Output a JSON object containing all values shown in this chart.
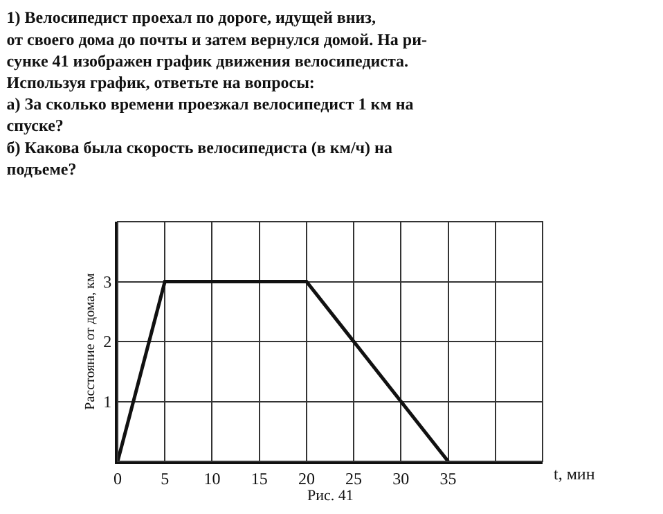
{
  "chart_data": {
    "type": "line",
    "title": "1) Велосипедист проехал по дороге, идущей вниз,\nот своего дома до почты и затем вернулся домой. На ри-\nсунке 41 изображен график движения велосипедиста.\nИспользуя график, ответьте на вопросы:\nа) За сколько времени проезжал велосипедист 1 км на\nспуске?\nб) Какова была скорость велосипедиста (в км/ч) на\nподъеме?",
    "xlabel": "t, мин",
    "ylabel": "Расстояние от дома, км",
    "annotations": [
      "Рис. 41"
    ],
    "x": [
      0,
      5,
      20,
      35
    ],
    "series": [
      {
        "color": "#111111",
        "values": [
          0,
          3,
          3,
          0
        ]
      }
    ],
    "xlim": [
      0,
      45
    ],
    "ylim": [
      0,
      4
    ],
    "xticks": [
      0,
      5,
      10,
      15,
      20,
      25,
      30,
      35,
      {
        "value": 40,
        "label": null
      },
      {
        "value": 45,
        "label": null
      }
    ],
    "yticks": [
      {
        "value": 0,
        "label": null
      },
      1,
      2,
      3,
      {
        "value": 4,
        "label": null
      }
    ],
    "grid": true,
    "marker": "none",
    "line_style": "solid"
  }
}
